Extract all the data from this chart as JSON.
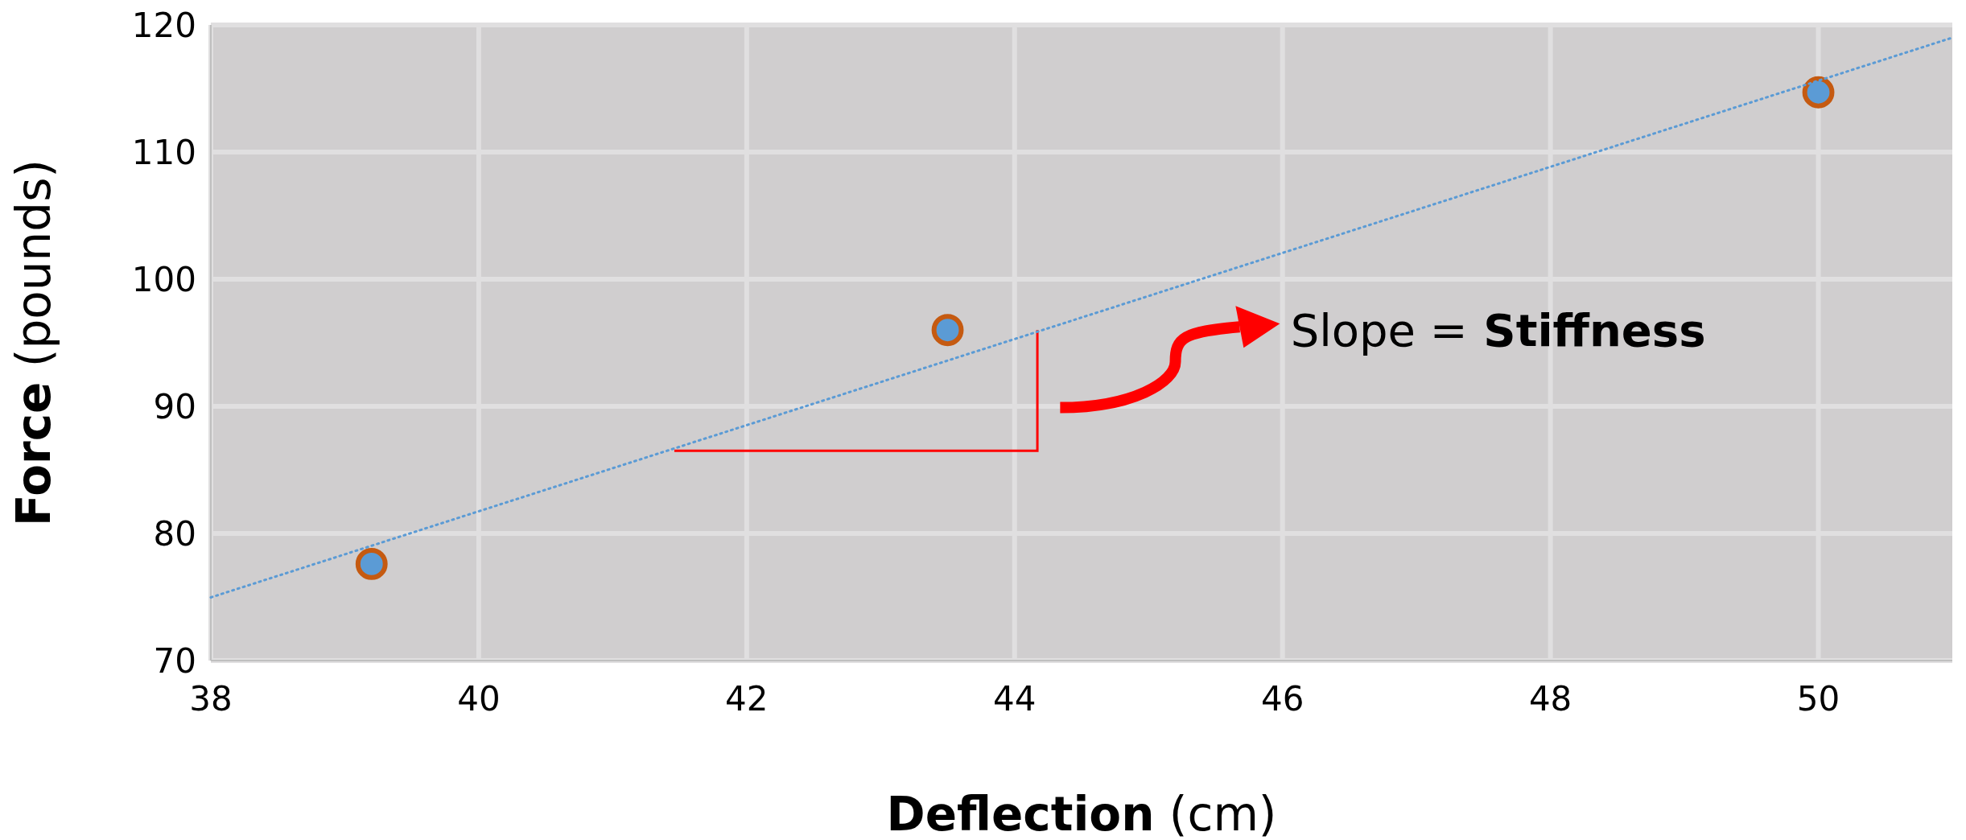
{
  "chart_data": {
    "type": "scatter",
    "xlabel": "Deflection (cm)",
    "ylabel": "Force (pounds)",
    "xlim": [
      38,
      51
    ],
    "xticks": [
      38,
      40,
      42,
      44,
      46,
      48,
      50
    ],
    "ylim": [
      70,
      120
    ],
    "yticks": [
      70,
      80,
      90,
      100,
      110,
      120
    ],
    "grid": true,
    "series": [
      {
        "color": "#5b9bd5",
        "marker": "circle",
        "x": [
          39.2,
          43.5,
          50
        ],
        "values": [
          77.6,
          96,
          114.7
        ]
      },
      {
        "type": "line",
        "color": "#5b9bd5",
        "line_style": "dotted",
        "marker": "none",
        "x": [
          38,
          51
        ],
        "values": [
          74.97,
          119.0
        ]
      }
    ],
    "annotations": [
      "Slope = Stiffness"
    ]
  }
}
